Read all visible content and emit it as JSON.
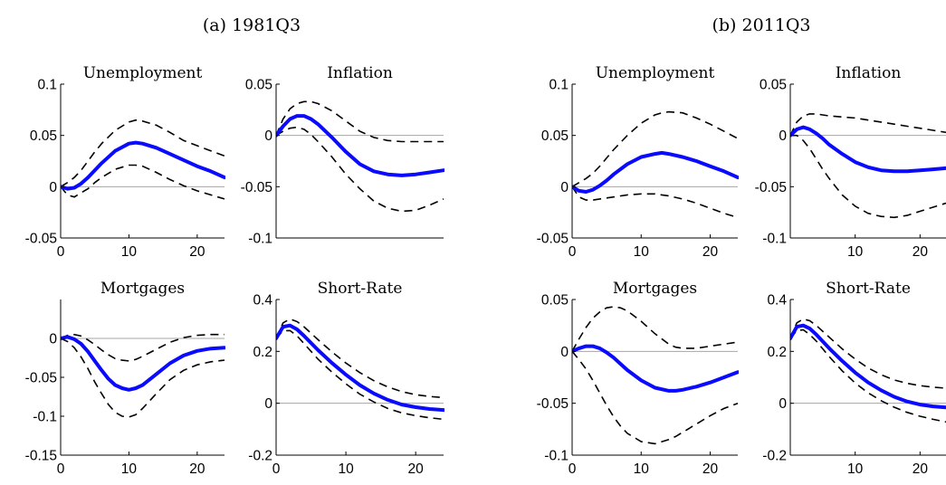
{
  "panels": [
    {
      "label": "(a)  1981Q3"
    },
    {
      "label": "(b)  2011Q3"
    }
  ],
  "colors": {
    "median": "#0a0aff",
    "bands": "#000000",
    "zero_line": "#a6a6a6"
  },
  "chart_data": [
    {
      "type": "line",
      "panel": "(a)  1981Q3",
      "title": "Unemployment",
      "xlim": [
        0,
        24
      ],
      "ylim": [
        -0.05,
        0.1
      ],
      "xticks": [
        0,
        10,
        20
      ],
      "yticks": [
        -0.05,
        0,
        0.05,
        0.1
      ],
      "ytick_labels": [
        "-0.05",
        "0",
        "0.05",
        "0.1"
      ],
      "zero_line": true,
      "x": [
        0,
        1,
        2,
        3,
        4,
        5,
        6,
        8,
        10,
        11,
        12,
        14,
        16,
        18,
        20,
        22,
        24
      ],
      "series": [
        {
          "values": [
            0,
            -0.002,
            -0.001,
            0.003,
            0.009,
            0.016,
            0.023,
            0.035,
            0.042,
            0.043,
            0.042,
            0.038,
            0.032,
            0.026,
            0.02,
            0.015,
            0.009
          ]
        },
        {
          "values": [
            0,
            0.004,
            0.009,
            0.016,
            0.025,
            0.034,
            0.042,
            0.055,
            0.063,
            0.065,
            0.064,
            0.06,
            0.053,
            0.045,
            0.04,
            0.035,
            0.03
          ]
        },
        {
          "values": [
            0,
            -0.008,
            -0.01,
            -0.006,
            -0.002,
            0.004,
            0.009,
            0.017,
            0.021,
            0.021,
            0.02,
            0.014,
            0.007,
            0.001,
            -0.004,
            -0.008,
            -0.012
          ]
        }
      ]
    },
    {
      "type": "line",
      "panel": "(a)  1981Q3",
      "title": "Inflation",
      "xlim": [
        0,
        24
      ],
      "ylim": [
        -0.1,
        0.05
      ],
      "xticks": [],
      "yticks": [
        -0.1,
        -0.05,
        0,
        0.05
      ],
      "ytick_labels": [
        "-0.1",
        "-0.05",
        "0",
        "0.05"
      ],
      "zero_line": true,
      "x": [
        0,
        1,
        2,
        3,
        4,
        5,
        6,
        8,
        10,
        12,
        14,
        16,
        18,
        20,
        22,
        24
      ],
      "series": [
        {
          "values": [
            0,
            0.009,
            0.016,
            0.019,
            0.019,
            0.016,
            0.011,
            -0.002,
            -0.016,
            -0.028,
            -0.035,
            -0.038,
            -0.039,
            -0.038,
            -0.036,
            -0.034
          ]
        },
        {
          "values": [
            0,
            0.016,
            0.026,
            0.031,
            0.033,
            0.033,
            0.031,
            0.024,
            0.014,
            0.004,
            -0.002,
            -0.005,
            -0.006,
            -0.006,
            -0.006,
            -0.006
          ]
        },
        {
          "values": [
            0,
            0.004,
            0.007,
            0.008,
            0.006,
            0.001,
            -0.006,
            -0.021,
            -0.038,
            -0.052,
            -0.064,
            -0.071,
            -0.074,
            -0.073,
            -0.068,
            -0.062
          ]
        }
      ]
    },
    {
      "type": "line",
      "panel": "(a)  1981Q3",
      "title": "Mortgages",
      "xlim": [
        0,
        24
      ],
      "ylim": [
        -0.15,
        0.05
      ],
      "xticks": [
        0,
        10,
        20
      ],
      "yticks": [
        -0.15,
        -0.1,
        -0.05,
        0
      ],
      "ytick_labels": [
        "-0.15",
        "-0.1",
        "-0.05",
        "0"
      ],
      "zero_line": true,
      "x": [
        0,
        1,
        2,
        3,
        4,
        5,
        6,
        7,
        8,
        9,
        10,
        11,
        12,
        14,
        16,
        18,
        20,
        22,
        24
      ],
      "series": [
        {
          "values": [
            0,
            0.002,
            -0.001,
            -0.007,
            -0.017,
            -0.029,
            -0.041,
            -0.052,
            -0.06,
            -0.064,
            -0.066,
            -0.064,
            -0.06,
            -0.046,
            -0.032,
            -0.022,
            -0.016,
            -0.013,
            -0.012
          ]
        },
        {
          "values": [
            0,
            0.004,
            0.005,
            0.003,
            -0.002,
            -0.008,
            -0.015,
            -0.021,
            -0.026,
            -0.028,
            -0.029,
            -0.027,
            -0.023,
            -0.014,
            -0.005,
            0.001,
            0.004,
            0.005,
            0.005
          ]
        },
        {
          "values": [
            0,
            -0.004,
            -0.012,
            -0.024,
            -0.039,
            -0.056,
            -0.071,
            -0.085,
            -0.095,
            -0.1,
            -0.101,
            -0.098,
            -0.09,
            -0.071,
            -0.053,
            -0.041,
            -0.034,
            -0.03,
            -0.028
          ]
        }
      ]
    },
    {
      "type": "line",
      "panel": "(a)  1981Q3",
      "title": "Short-Rate",
      "xlim": [
        0,
        24
      ],
      "ylim": [
        -0.2,
        0.4
      ],
      "xticks": [
        0,
        10,
        20
      ],
      "yticks": [
        -0.2,
        0,
        0.2,
        0.4
      ],
      "ytick_labels": [
        "-0.2",
        "0",
        "0.2",
        "0.4"
      ],
      "zero_line": true,
      "x": [
        0,
        1,
        2,
        3,
        4,
        6,
        8,
        10,
        12,
        14,
        16,
        18,
        20,
        22,
        24
      ],
      "series": [
        {
          "values": [
            0.25,
            0.295,
            0.3,
            0.285,
            0.26,
            0.205,
            0.155,
            0.11,
            0.07,
            0.038,
            0.013,
            -0.005,
            -0.015,
            -0.022,
            -0.026
          ]
        },
        {
          "values": [
            0.25,
            0.31,
            0.325,
            0.315,
            0.295,
            0.245,
            0.198,
            0.155,
            0.118,
            0.087,
            0.063,
            0.045,
            0.033,
            0.026,
            0.022
          ]
        },
        {
          "values": [
            0.25,
            0.28,
            0.28,
            0.26,
            0.23,
            0.17,
            0.12,
            0.075,
            0.035,
            0.005,
            -0.02,
            -0.037,
            -0.048,
            -0.056,
            -0.062
          ]
        }
      ]
    },
    {
      "type": "line",
      "panel": "(b)  2011Q3",
      "title": "Unemployment",
      "xlim": [
        0,
        24
      ],
      "ylim": [
        -0.05,
        0.1
      ],
      "xticks": [
        0,
        10,
        20
      ],
      "yticks": [
        -0.05,
        0,
        0.05,
        0.1
      ],
      "ytick_labels": [
        "-0.05",
        "0",
        "0.05",
        "0.1"
      ],
      "zero_line": true,
      "x": [
        0,
        1,
        2,
        3,
        4,
        5,
        6,
        8,
        10,
        12,
        13,
        14,
        16,
        18,
        20,
        22,
        24
      ],
      "series": [
        {
          "values": [
            0,
            -0.004,
            -0.005,
            -0.003,
            0.001,
            0.006,
            0.012,
            0.022,
            0.029,
            0.032,
            0.033,
            0.032,
            0.029,
            0.025,
            0.02,
            0.015,
            0.009
          ]
        },
        {
          "values": [
            0,
            0.004,
            0.008,
            0.013,
            0.02,
            0.028,
            0.036,
            0.05,
            0.062,
            0.07,
            0.072,
            0.073,
            0.072,
            0.067,
            0.061,
            0.054,
            0.047
          ]
        },
        {
          "values": [
            0,
            -0.01,
            -0.013,
            -0.013,
            -0.012,
            -0.011,
            -0.01,
            -0.008,
            -0.007,
            -0.007,
            -0.008,
            -0.009,
            -0.012,
            -0.016,
            -0.021,
            -0.026,
            -0.03
          ]
        }
      ]
    },
    {
      "type": "line",
      "panel": "(b)  2011Q3",
      "title": "Inflation",
      "xlim": [
        0,
        24
      ],
      "ylim": [
        -0.1,
        0.05
      ],
      "xticks": [
        10,
        20
      ],
      "yticks": [
        -0.1,
        -0.05,
        0,
        0.05
      ],
      "ytick_labels": [
        "-0.1",
        "-0.05",
        "0",
        "0.05"
      ],
      "zero_line": true,
      "x": [
        0,
        1,
        2,
        3,
        4,
        5,
        6,
        8,
        10,
        12,
        14,
        16,
        18,
        20,
        22,
        24
      ],
      "series": [
        {
          "values": [
            0,
            0.006,
            0.008,
            0.006,
            0.002,
            -0.003,
            -0.009,
            -0.018,
            -0.026,
            -0.031,
            -0.034,
            -0.035,
            -0.035,
            -0.034,
            -0.033,
            -0.032
          ]
        },
        {
          "values": [
            0,
            0.013,
            0.019,
            0.021,
            0.021,
            0.02,
            0.019,
            0.018,
            0.017,
            0.015,
            0.013,
            0.011,
            0.009,
            0.007,
            0.005,
            0.003
          ]
        },
        {
          "values": [
            0,
            0,
            -0.005,
            -0.013,
            -0.023,
            -0.033,
            -0.042,
            -0.058,
            -0.069,
            -0.076,
            -0.079,
            -0.08,
            -0.078,
            -0.074,
            -0.07,
            -0.066
          ]
        }
      ]
    },
    {
      "type": "line",
      "panel": "(b)  2011Q3",
      "title": "Mortgages",
      "xlim": [
        0,
        24
      ],
      "ylim": [
        -0.1,
        0.05
      ],
      "xticks": [
        0,
        10,
        20
      ],
      "yticks": [
        -0.1,
        -0.05,
        0,
        0.05
      ],
      "ytick_labels": [
        "-0.1",
        "-0.05",
        "0",
        "0.05"
      ],
      "zero_line": true,
      "x": [
        0,
        1,
        2,
        3,
        4,
        5,
        6,
        7,
        8,
        10,
        12,
        14,
        15,
        16,
        18,
        20,
        22,
        24
      ],
      "series": [
        {
          "values": [
            0,
            0.003,
            0.005,
            0.005,
            0.003,
            -0.001,
            -0.006,
            -0.012,
            -0.018,
            -0.028,
            -0.035,
            -0.038,
            -0.038,
            -0.037,
            -0.034,
            -0.03,
            -0.025,
            -0.02
          ]
        },
        {
          "values": [
            0,
            0.012,
            0.023,
            0.032,
            0.038,
            0.042,
            0.043,
            0.042,
            0.039,
            0.029,
            0.017,
            0.007,
            0.004,
            0.003,
            0.003,
            0.005,
            0.007,
            0.009
          ]
        },
        {
          "values": [
            0,
            -0.008,
            -0.017,
            -0.028,
            -0.04,
            -0.052,
            -0.063,
            -0.072,
            -0.079,
            -0.087,
            -0.089,
            -0.085,
            -0.082,
            -0.078,
            -0.07,
            -0.062,
            -0.055,
            -0.05
          ]
        }
      ]
    },
    {
      "type": "line",
      "panel": "(b)  2011Q3",
      "title": "Short-Rate",
      "xlim": [
        0,
        24
      ],
      "ylim": [
        -0.2,
        0.4
      ],
      "xticks": [
        10,
        20
      ],
      "yticks": [
        -0.2,
        0,
        0.2,
        0.4
      ],
      "ytick_labels": [
        "-0.2",
        "0",
        "0.2",
        "0.4"
      ],
      "zero_line": true,
      "x": [
        0,
        1,
        2,
        3,
        4,
        6,
        8,
        10,
        12,
        14,
        16,
        18,
        20,
        22,
        24
      ],
      "series": [
        {
          "values": [
            0.25,
            0.295,
            0.3,
            0.288,
            0.265,
            0.212,
            0.163,
            0.118,
            0.08,
            0.05,
            0.025,
            0.007,
            -0.005,
            -0.012,
            -0.016
          ]
        },
        {
          "values": [
            0.25,
            0.31,
            0.325,
            0.318,
            0.3,
            0.255,
            0.21,
            0.17,
            0.136,
            0.11,
            0.09,
            0.077,
            0.068,
            0.062,
            0.058
          ]
        },
        {
          "values": [
            0.25,
            0.28,
            0.283,
            0.265,
            0.24,
            0.18,
            0.125,
            0.078,
            0.04,
            0.01,
            -0.015,
            -0.035,
            -0.05,
            -0.062,
            -0.072
          ]
        }
      ]
    }
  ]
}
